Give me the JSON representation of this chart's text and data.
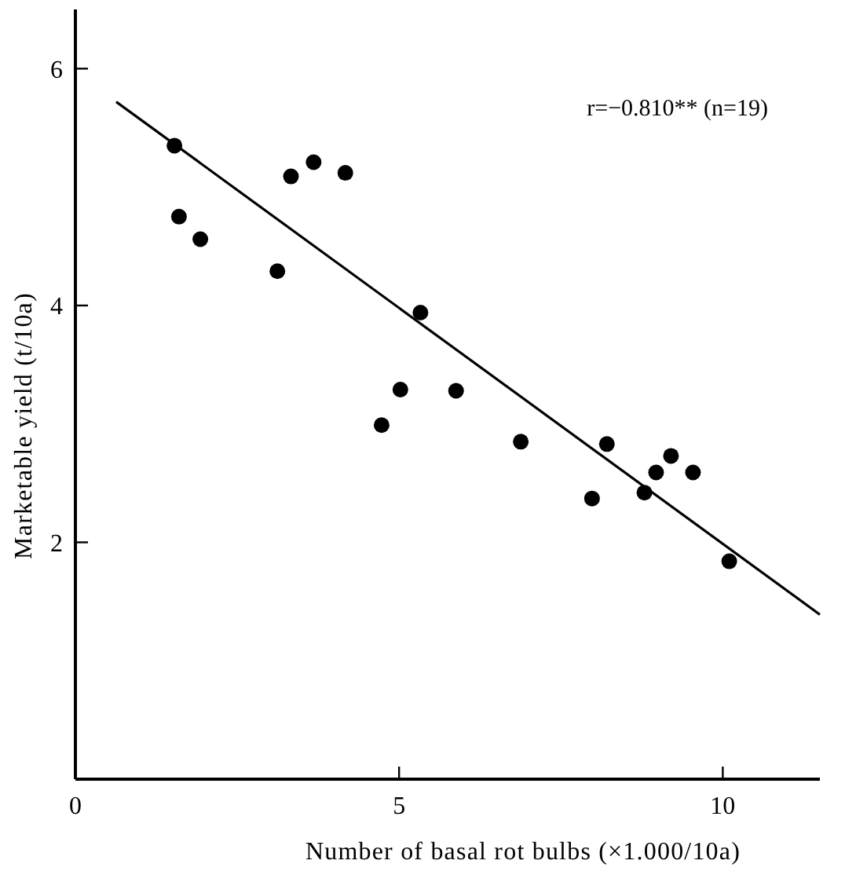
{
  "chart_data": {
    "type": "scatter",
    "xlabel": "Number of basal rot bulbs (×1.000/10a)",
    "ylabel": "Marketable yield (t/10a)",
    "xlim": [
      0,
      11.5
    ],
    "ylim": [
      0,
      6.5
    ],
    "xticks": [
      0,
      5,
      10
    ],
    "yticks": [
      2,
      4,
      6
    ],
    "grid": false,
    "annotations": [
      "r=−0.810** (n=19)"
    ],
    "series": [
      {
        "marker": "circle",
        "color": "#000000",
        "x": [
          1.53,
          1.6,
          1.93,
          3.12,
          3.33,
          3.68,
          4.17,
          5.33,
          5.02,
          4.73,
          5.88,
          6.88,
          8.21,
          7.98,
          8.79,
          8.97,
          9.2,
          9.54,
          10.1
        ],
        "values": [
          5.35,
          4.75,
          4.56,
          4.29,
          5.09,
          5.21,
          5.12,
          3.94,
          3.29,
          2.99,
          3.28,
          2.85,
          2.83,
          2.37,
          2.42,
          2.59,
          2.73,
          2.59,
          1.84
        ]
      },
      {
        "type": "line",
        "color": "#000000",
        "x": [
          0.63,
          11.5
        ],
        "values": [
          5.72,
          1.39
        ]
      }
    ]
  }
}
